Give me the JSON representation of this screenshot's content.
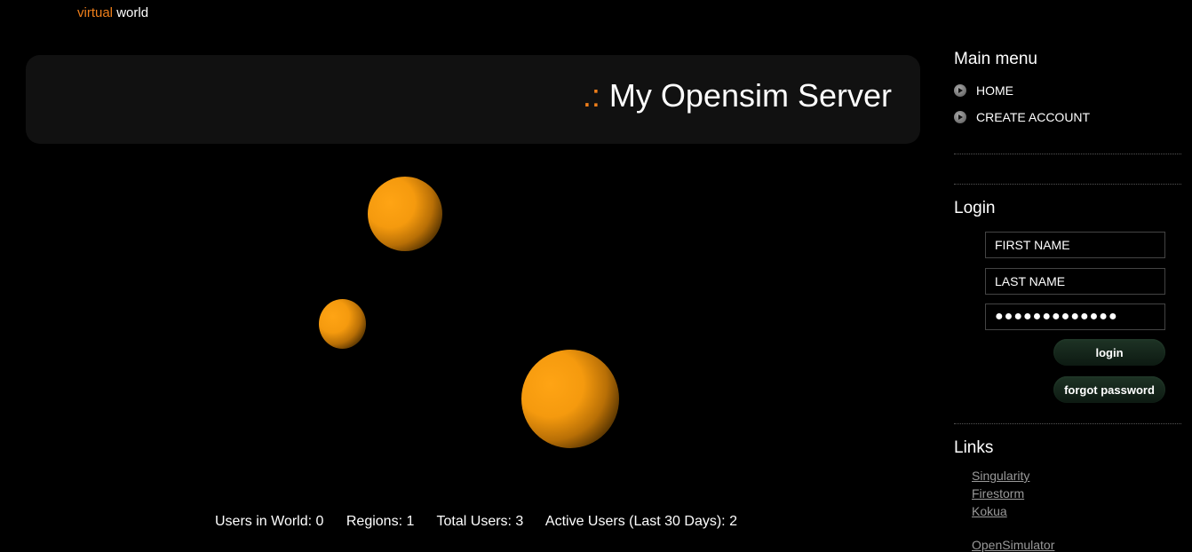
{
  "brand": {
    "accent": "virtual",
    "rest": "world"
  },
  "banner": {
    "prefix": ".:",
    "title": "My Opensim Server"
  },
  "stats": {
    "users_in_world": "Users in World: 0",
    "regions": "Regions: 1",
    "total_users": "Total Users: 3",
    "active_users": "Active Users (Last 30 Days): 2"
  },
  "main_menu": {
    "heading": "Main menu",
    "items": [
      {
        "label": "HOME"
      },
      {
        "label": "CREATE ACCOUNT"
      }
    ]
  },
  "login": {
    "heading": "Login",
    "first_name_placeholder": "FIRST NAME",
    "last_name_placeholder": "LAST NAME",
    "password_mask": "●●●●●●●●●●●●●",
    "login_label": "login",
    "forgot_label": "forgot password"
  },
  "links": {
    "heading": "Links",
    "items": [
      {
        "label": "Singularity"
      },
      {
        "label": "Firestorm"
      },
      {
        "label": "Kokua"
      },
      {
        "label": "OpenSimulator"
      }
    ]
  },
  "colors": {
    "accent": "#f07f1a",
    "planet": "#f59a0e",
    "button": "#1e3325"
  }
}
